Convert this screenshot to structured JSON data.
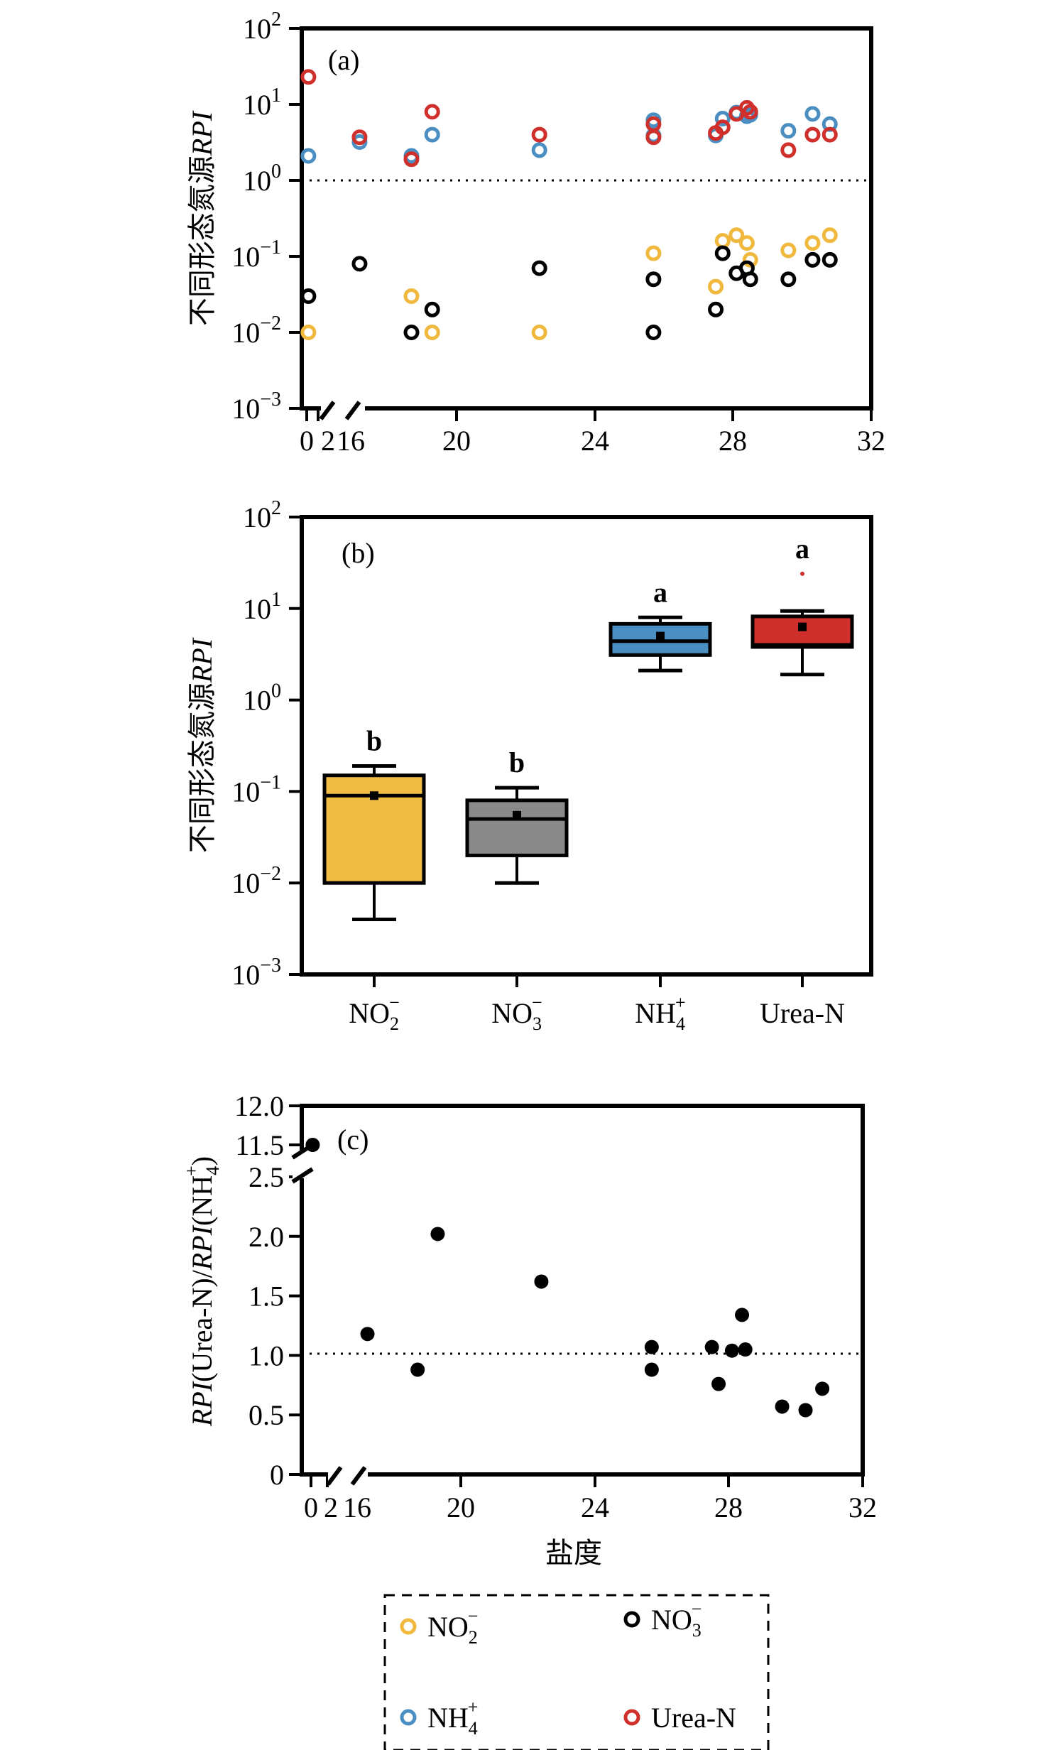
{
  "chart_data": [
    {
      "panel": "(a)",
      "type": "scatter",
      "ylabel": "不同形态氮源RPI",
      "yscale": "log",
      "ylim": [
        0.001,
        100
      ],
      "y_ticks": [
        {
          "v": 0.001,
          "base": "10",
          "exp": "−3"
        },
        {
          "v": 0.01,
          "base": "10",
          "exp": "−2"
        },
        {
          "v": 0.1,
          "base": "10",
          "exp": "−1"
        },
        {
          "v": 1,
          "base": "10",
          "exp": "0"
        },
        {
          "v": 10,
          "base": "10",
          "exp": "1"
        },
        {
          "v": 100,
          "base": "10",
          "exp": "2"
        }
      ],
      "x_tick_labels": [
        "0",
        "2",
        "16",
        "20",
        "24",
        "28",
        "32"
      ],
      "reference_line": 1,
      "series": [
        {
          "name": "NO2−",
          "color": "#f0b93e",
          "points": [
            [
              0.3,
              0.01
            ],
            [
              18.7,
              0.03
            ],
            [
              19.3,
              0.01
            ],
            [
              22.4,
              0.01
            ],
            [
              25.7,
              0.11
            ],
            [
              27.5,
              0.04
            ],
            [
              27.7,
              0.16
            ],
            [
              28.1,
              0.19
            ],
            [
              28.4,
              0.15
            ],
            [
              28.5,
              0.09
            ],
            [
              29.6,
              0.12
            ],
            [
              30.3,
              0.15
            ],
            [
              30.8,
              0.19
            ]
          ]
        },
        {
          "name": "NO3−",
          "color": "#000000",
          "points": [
            [
              0.3,
              0.03
            ],
            [
              17.2,
              0.08
            ],
            [
              18.7,
              0.01
            ],
            [
              19.3,
              0.02
            ],
            [
              22.4,
              0.07
            ],
            [
              25.7,
              0.05
            ],
            [
              25.7,
              0.01
            ],
            [
              27.5,
              0.02
            ],
            [
              27.7,
              0.11
            ],
            [
              28.1,
              0.06
            ],
            [
              28.4,
              0.07
            ],
            [
              28.5,
              0.05
            ],
            [
              29.6,
              0.05
            ],
            [
              30.3,
              0.09
            ],
            [
              30.8,
              0.09
            ]
          ]
        },
        {
          "name": "NH4+",
          "color": "#4a8ec2",
          "points": [
            [
              0.3,
              2.1
            ],
            [
              17.2,
              3.2
            ],
            [
              18.7,
              2.1
            ],
            [
              19.3,
              4.0
            ],
            [
              22.4,
              2.5
            ],
            [
              25.7,
              6.2
            ],
            [
              25.7,
              3.9
            ],
            [
              27.5,
              3.9
            ],
            [
              27.7,
              6.5
            ],
            [
              28.1,
              7.8
            ],
            [
              28.4,
              7.0
            ],
            [
              28.5,
              7.3
            ],
            [
              29.6,
              4.5
            ],
            [
              30.3,
              7.5
            ],
            [
              30.8,
              5.5
            ]
          ]
        },
        {
          "name": "Urea-N",
          "color": "#d0302b",
          "points": [
            [
              0.3,
              23
            ],
            [
              17.2,
              3.7
            ],
            [
              18.7,
              1.9
            ],
            [
              19.3,
              8.0
            ],
            [
              22.4,
              4.0
            ],
            [
              25.7,
              5.5
            ],
            [
              25.7,
              3.7
            ],
            [
              27.5,
              4.2
            ],
            [
              27.7,
              5.0
            ],
            [
              28.1,
              7.5
            ],
            [
              28.4,
              9.0
            ],
            [
              28.5,
              8.0
            ],
            [
              29.6,
              2.5
            ],
            [
              30.3,
              4.0
            ],
            [
              30.8,
              4.0
            ]
          ]
        }
      ]
    },
    {
      "panel": "(b)",
      "type": "box",
      "ylabel": "不同形态氮源RPI",
      "yscale": "log",
      "ylim": [
        0.001,
        100
      ],
      "y_ticks": [
        {
          "v": 0.001,
          "base": "10",
          "exp": "−3"
        },
        {
          "v": 0.01,
          "base": "10",
          "exp": "−2"
        },
        {
          "v": 0.1,
          "base": "10",
          "exp": "−1"
        },
        {
          "v": 1,
          "base": "10",
          "exp": "0"
        },
        {
          "v": 10,
          "base": "10",
          "exp": "1"
        },
        {
          "v": 100,
          "base": "10",
          "exp": "2"
        }
      ],
      "categories": [
        {
          "base": "NO",
          "sub": "2",
          "sup": "−"
        },
        {
          "base": "NO",
          "sub": "3",
          "sup": "−"
        },
        {
          "base": "NH",
          "sub": "4",
          "sup": "+"
        },
        {
          "base": "Urea-N",
          "sub": "",
          "sup": ""
        }
      ],
      "boxes": [
        {
          "color": "#f0bd44",
          "min": 0.004,
          "q1": 0.01,
          "median": 0.09,
          "q3": 0.15,
          "max": 0.19,
          "mean": 0.09,
          "letter": "b"
        },
        {
          "color": "#8a8a8a",
          "min": 0.01,
          "q1": 0.02,
          "median": 0.05,
          "q3": 0.08,
          "max": 0.11,
          "mean": 0.055,
          "letter": "b"
        },
        {
          "color": "#4a8ec2",
          "min": 2.1,
          "q1": 3.1,
          "median": 4.4,
          "q3": 6.8,
          "max": 8.0,
          "mean": 5.0,
          "letter": "a"
        },
        {
          "color": "#d0302b",
          "min": 1.9,
          "q1": 3.8,
          "median": 4.0,
          "q3": 8.2,
          "max": 9.4,
          "mean": 6.3,
          "outlier": 24,
          "letter": "a"
        }
      ]
    },
    {
      "panel": "(c)",
      "type": "scatter",
      "xlabel": "盐度",
      "ylabel": "RPI(Urea-N)/RPI(NH4+)",
      "ylim": [
        0,
        12
      ],
      "y_tick_labels": [
        "0",
        "0.5",
        "1.0",
        "1.5",
        "2.0",
        "2.5",
        "11.5",
        "12.0"
      ],
      "x_tick_labels": [
        "0",
        "2",
        "16",
        "20",
        "24",
        "28",
        "32"
      ],
      "reference_line": 1,
      "points": [
        [
          0.3,
          11.5
        ],
        [
          17.2,
          1.18
        ],
        [
          18.7,
          0.88
        ],
        [
          19.3,
          2.02
        ],
        [
          22.4,
          1.62
        ],
        [
          25.7,
          1.07
        ],
        [
          25.7,
          0.88
        ],
        [
          27.5,
          1.07
        ],
        [
          27.7,
          0.76
        ],
        [
          28.1,
          1.04
        ],
        [
          28.4,
          1.34
        ],
        [
          28.5,
          1.05
        ],
        [
          29.6,
          0.57
        ],
        [
          30.3,
          0.54
        ],
        [
          30.8,
          0.72
        ]
      ]
    }
  ],
  "legend": [
    {
      "base": "NO",
      "sub": "2",
      "sup": "−",
      "color": "#f0b93e"
    },
    {
      "base": "NO",
      "sub": "3",
      "sup": "−",
      "color": "#000000"
    },
    {
      "base": "NH",
      "sub": "4",
      "sup": "+",
      "color": "#4a8ec2"
    },
    {
      "base": "Urea-N",
      "sub": "",
      "sup": "",
      "color": "#d0302b"
    }
  ]
}
